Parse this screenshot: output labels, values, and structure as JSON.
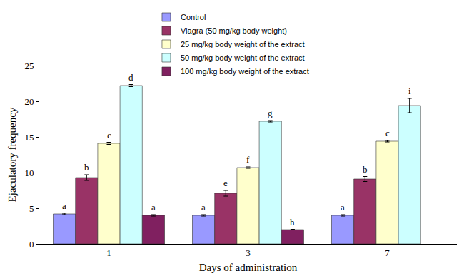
{
  "chart_data": {
    "type": "bar",
    "x_label": "Days of administration",
    "y_label": "Ejaculatory frequency",
    "categories": [
      "1",
      "3",
      "7"
    ],
    "ylim": [
      0,
      25
    ],
    "yticks": [
      0,
      5,
      10,
      15,
      20,
      25
    ],
    "grid": false,
    "legend": "top",
    "series": [
      {
        "name": "Control",
        "color": "#9999ff",
        "values": [
          4.2,
          4.0,
          4.0
        ],
        "errors": [
          0.1,
          0.1,
          0.1
        ],
        "letters": [
          "a",
          "a",
          "a"
        ]
      },
      {
        "name": "Viagra (50 mg/kg body weight)",
        "color": "#993366",
        "values": [
          9.3,
          7.1,
          9.1
        ],
        "errors": [
          0.4,
          0.4,
          0.35
        ],
        "letters": [
          "b",
          "e",
          "b"
        ]
      },
      {
        "name": "25 mg/kg body weight of the extract",
        "color": "#ffffcc",
        "values": [
          14.1,
          10.7,
          14.4
        ],
        "errors": [
          0.15,
          0.1,
          0.1
        ],
        "letters": [
          "c",
          "f",
          "c"
        ]
      },
      {
        "name": "50 mg/kg body weight of the extract",
        "color": "#ccffff",
        "values": [
          22.2,
          17.2,
          19.4
        ],
        "errors": [
          0.15,
          0.1,
          1.0
        ],
        "letters": [
          "d",
          "g",
          "i"
        ]
      },
      {
        "name": "100 mg/kg body weight of the extract",
        "color": "#802060",
        "values": [
          4.0,
          2.0,
          null
        ],
        "errors": [
          0.1,
          0.05,
          null
        ],
        "letters": [
          "a",
          "h",
          null
        ]
      }
    ]
  }
}
